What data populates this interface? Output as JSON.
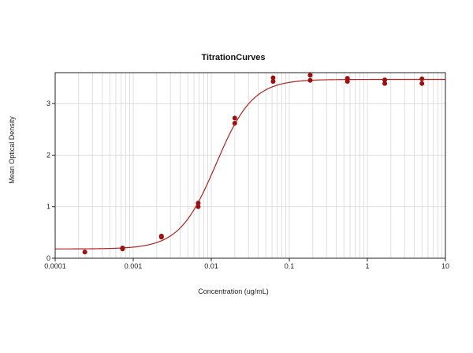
{
  "chart_data": {
    "type": "scatter",
    "title": "TitrationCurves",
    "xlabel": "Concentration (ug/mL)",
    "ylabel": "Mean Optical Density",
    "x_scale": "log",
    "xlim": [
      0.0001,
      10
    ],
    "ylim": [
      0,
      3.6
    ],
    "x_ticks": [
      {
        "value": 0.0001,
        "label": "0.0001"
      },
      {
        "value": 0.001,
        "label": "0.001"
      },
      {
        "value": 0.01,
        "label": "0.01"
      },
      {
        "value": 0.1,
        "label": "0.1"
      },
      {
        "value": 1,
        "label": "1"
      },
      {
        "value": 10,
        "label": "10"
      }
    ],
    "y_ticks": [
      {
        "value": 0,
        "label": "0"
      },
      {
        "value": 1,
        "label": "1"
      },
      {
        "value": 2,
        "label": "2"
      },
      {
        "value": 3,
        "label": "3"
      }
    ],
    "grid": true,
    "points": [
      {
        "x": 0.00024,
        "y": 0.12
      },
      {
        "x": 0.00073,
        "y": 0.2
      },
      {
        "x": 0.00073,
        "y": 0.18
      },
      {
        "x": 0.0023,
        "y": 0.43
      },
      {
        "x": 0.0023,
        "y": 0.41
      },
      {
        "x": 0.0068,
        "y": 1.07
      },
      {
        "x": 0.0068,
        "y": 1.0
      },
      {
        "x": 0.02,
        "y": 2.72
      },
      {
        "x": 0.02,
        "y": 2.62
      },
      {
        "x": 0.062,
        "y": 3.5
      },
      {
        "x": 0.062,
        "y": 3.43
      },
      {
        "x": 0.185,
        "y": 3.55
      },
      {
        "x": 0.185,
        "y": 3.45
      },
      {
        "x": 0.555,
        "y": 3.49
      },
      {
        "x": 0.555,
        "y": 3.43
      },
      {
        "x": 1.67,
        "y": 3.46
      },
      {
        "x": 1.67,
        "y": 3.39
      },
      {
        "x": 5.0,
        "y": 3.48
      },
      {
        "x": 5.0,
        "y": 3.39
      }
    ],
    "fit": {
      "model": "4PL",
      "bottom": 0.18,
      "top": 3.47,
      "ec50": 0.0115,
      "hill": 1.85
    },
    "colors": {
      "points": "#9c1010",
      "curve": "#b02020",
      "grid": "#d8d8d8",
      "axis": "#222222"
    }
  }
}
